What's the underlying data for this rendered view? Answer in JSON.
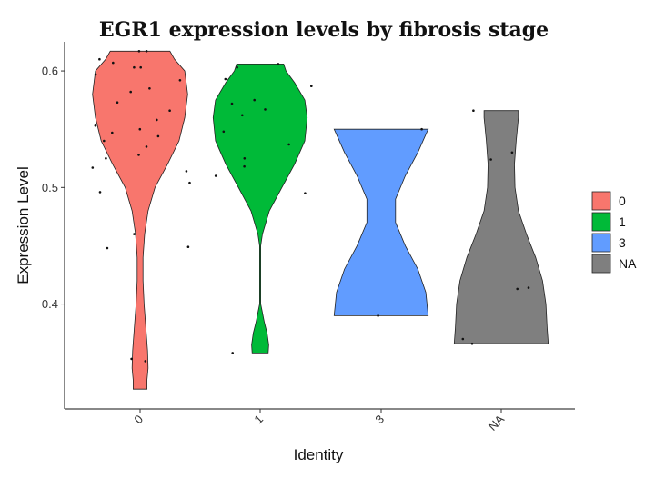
{
  "chart_data": {
    "type": "violin",
    "title": "EGR1 expression levels by fibrosis stage",
    "xlabel": "Identity",
    "ylabel": "Expression Level",
    "ylim": [
      0.31,
      0.625
    ],
    "yticks": [
      0.4,
      0.5,
      0.6
    ],
    "ytick_labels": [
      "0.4",
      "0.5",
      "0.6"
    ],
    "categories": [
      "0",
      "1",
      "3",
      "NA"
    ],
    "legend": {
      "position": "right",
      "entries": [
        "0",
        "1",
        "3",
        "NA"
      ]
    },
    "series": [
      {
        "name": "0",
        "color": "#F8766D",
        "range": [
          0.327,
          0.617
        ],
        "points": [
          0.617,
          0.617,
          0.61,
          0.607,
          0.603,
          0.603,
          0.597,
          0.592,
          0.585,
          0.582,
          0.573,
          0.566,
          0.558,
          0.553,
          0.55,
          0.547,
          0.544,
          0.54,
          0.535,
          0.528,
          0.525,
          0.517,
          0.514,
          0.504,
          0.496,
          0.46,
          0.449,
          0.448,
          0.353,
          0.351
        ],
        "density": [
          [
            0.327,
            0.12
          ],
          [
            0.335,
            0.12
          ],
          [
            0.345,
            0.14
          ],
          [
            0.36,
            0.13
          ],
          [
            0.38,
            0.1
          ],
          [
            0.4,
            0.07
          ],
          [
            0.42,
            0.05
          ],
          [
            0.44,
            0.05
          ],
          [
            0.46,
            0.08
          ],
          [
            0.48,
            0.14
          ],
          [
            0.5,
            0.26
          ],
          [
            0.52,
            0.48
          ],
          [
            0.54,
            0.68
          ],
          [
            0.56,
            0.78
          ],
          [
            0.58,
            0.83
          ],
          [
            0.6,
            0.78
          ],
          [
            0.61,
            0.6
          ],
          [
            0.617,
            0.52
          ]
        ]
      },
      {
        "name": "1",
        "color": "#00BA38",
        "range": [
          0.358,
          0.606
        ],
        "points": [
          0.606,
          0.603,
          0.593,
          0.587,
          0.575,
          0.572,
          0.567,
          0.562,
          0.548,
          0.537,
          0.525,
          0.518,
          0.51,
          0.495,
          0.358
        ],
        "density": [
          [
            0.358,
            0.14
          ],
          [
            0.365,
            0.15
          ],
          [
            0.375,
            0.12
          ],
          [
            0.385,
            0.07
          ],
          [
            0.395,
            0.03
          ],
          [
            0.4,
            0.01
          ],
          [
            0.45,
            0.01
          ],
          [
            0.46,
            0.04
          ],
          [
            0.48,
            0.16
          ],
          [
            0.5,
            0.38
          ],
          [
            0.52,
            0.6
          ],
          [
            0.54,
            0.78
          ],
          [
            0.56,
            0.82
          ],
          [
            0.575,
            0.78
          ],
          [
            0.59,
            0.6
          ],
          [
            0.6,
            0.45
          ],
          [
            0.606,
            0.41
          ]
        ]
      },
      {
        "name": "3",
        "color": "#619CFF",
        "range": [
          0.39,
          0.55
        ],
        "points": [
          0.55,
          0.39
        ],
        "density": [
          [
            0.39,
            0.82
          ],
          [
            0.41,
            0.78
          ],
          [
            0.43,
            0.64
          ],
          [
            0.45,
            0.42
          ],
          [
            0.47,
            0.25
          ],
          [
            0.49,
            0.25
          ],
          [
            0.51,
            0.42
          ],
          [
            0.53,
            0.64
          ],
          [
            0.55,
            0.82
          ]
        ]
      },
      {
        "name": "NA",
        "color": "#7F7F7F",
        "range": [
          0.366,
          0.566
        ],
        "points": [
          0.566,
          0.53,
          0.524,
          0.414,
          0.413,
          0.37,
          0.366
        ],
        "density": [
          [
            0.366,
            0.82
          ],
          [
            0.38,
            0.8
          ],
          [
            0.4,
            0.78
          ],
          [
            0.42,
            0.72
          ],
          [
            0.44,
            0.6
          ],
          [
            0.46,
            0.44
          ],
          [
            0.48,
            0.3
          ],
          [
            0.5,
            0.24
          ],
          [
            0.52,
            0.23
          ],
          [
            0.54,
            0.26
          ],
          [
            0.56,
            0.3
          ],
          [
            0.566,
            0.3
          ]
        ]
      }
    ]
  }
}
